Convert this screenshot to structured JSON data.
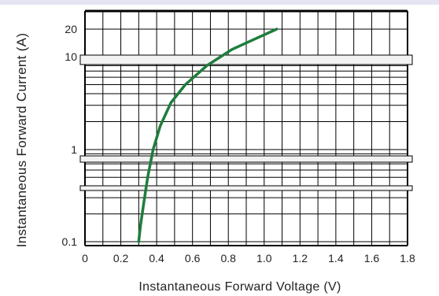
{
  "chart_data": {
    "type": "line",
    "xlabel": "Instantaneous Forward Voltage (V)",
    "ylabel": "Instantaneous Forward Current (A)",
    "x_scale": "linear",
    "y_scale": "log",
    "xlim": [
      0,
      1.8
    ],
    "ylim": [
      0.1,
      20
    ],
    "x_ticks": [
      "0",
      "0.2",
      "0.4",
      "0.6",
      "0.8",
      "1.0",
      "1.2",
      "1.4",
      "1.6",
      "1.8"
    ],
    "y_ticks": [
      "0.1",
      "1",
      "10",
      "20"
    ],
    "grid": true,
    "series": [
      {
        "color": "#1e7d3c",
        "x": [
          0.3,
          0.31,
          0.33,
          0.35,
          0.38,
          0.42,
          0.48,
          0.56,
          0.68,
          0.82,
          0.96,
          1.07
        ],
        "y": [
          0.1,
          0.15,
          0.28,
          0.5,
          1.0,
          1.8,
          3.2,
          5.0,
          8.0,
          12.0,
          16.0,
          20.0
        ]
      }
    ]
  }
}
